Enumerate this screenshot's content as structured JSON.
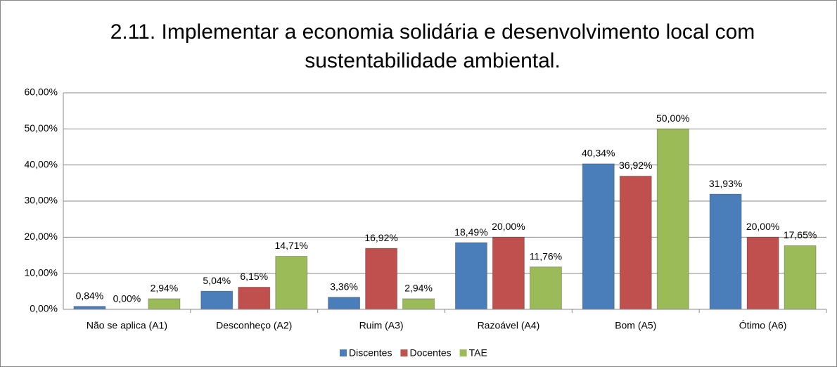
{
  "chart_data": {
    "type": "bar",
    "title": [
      "2.11. Implementar a economia solidária e desenvolvimento local com",
      "sustentabilidade ambiental."
    ],
    "categories": [
      "Não se aplica (A1)",
      "Desconheço (A2)",
      "Ruim (A3)",
      "Razoável (A4)",
      "Bom (A5)",
      "Ótimo (A6)"
    ],
    "series": [
      {
        "name": "Discentes",
        "color": "#4a7ebb",
        "values": [
          0.84,
          5.04,
          3.36,
          18.49,
          40.34,
          31.93
        ],
        "value_labels": [
          "0,84%",
          "5,04%",
          "3,36%",
          "18,49%",
          "40,34%",
          "31,93%"
        ]
      },
      {
        "name": "Docentes",
        "color": "#c0504d",
        "values": [
          0,
          6.15,
          16.92,
          20,
          36.92,
          20
        ],
        "value_labels": [
          "0,00%",
          "6,15%",
          "16,92%",
          "20,00%",
          "36,92%",
          "20,00%"
        ]
      },
      {
        "name": "TAE",
        "color": "#9bbb59",
        "values": [
          2.94,
          14.71,
          2.94,
          11.76,
          50,
          17.65
        ],
        "value_labels": [
          "2,94%",
          "14,71%",
          "2,94%",
          "11,76%",
          "50,00%",
          "17,65%"
        ]
      }
    ],
    "ylim": [
      0,
      60
    ],
    "yticks": [
      {
        "value": 0,
        "label": "0,00%"
      },
      {
        "value": 10,
        "label": "10,00%"
      },
      {
        "value": 20,
        "label": "20,00%"
      },
      {
        "value": 30,
        "label": "30,00%"
      },
      {
        "value": 40,
        "label": "40,00%"
      },
      {
        "value": 50,
        "label": "50,00%"
      },
      {
        "value": 60,
        "label": "60,00%"
      }
    ],
    "grid": true,
    "legend": "bottom"
  }
}
